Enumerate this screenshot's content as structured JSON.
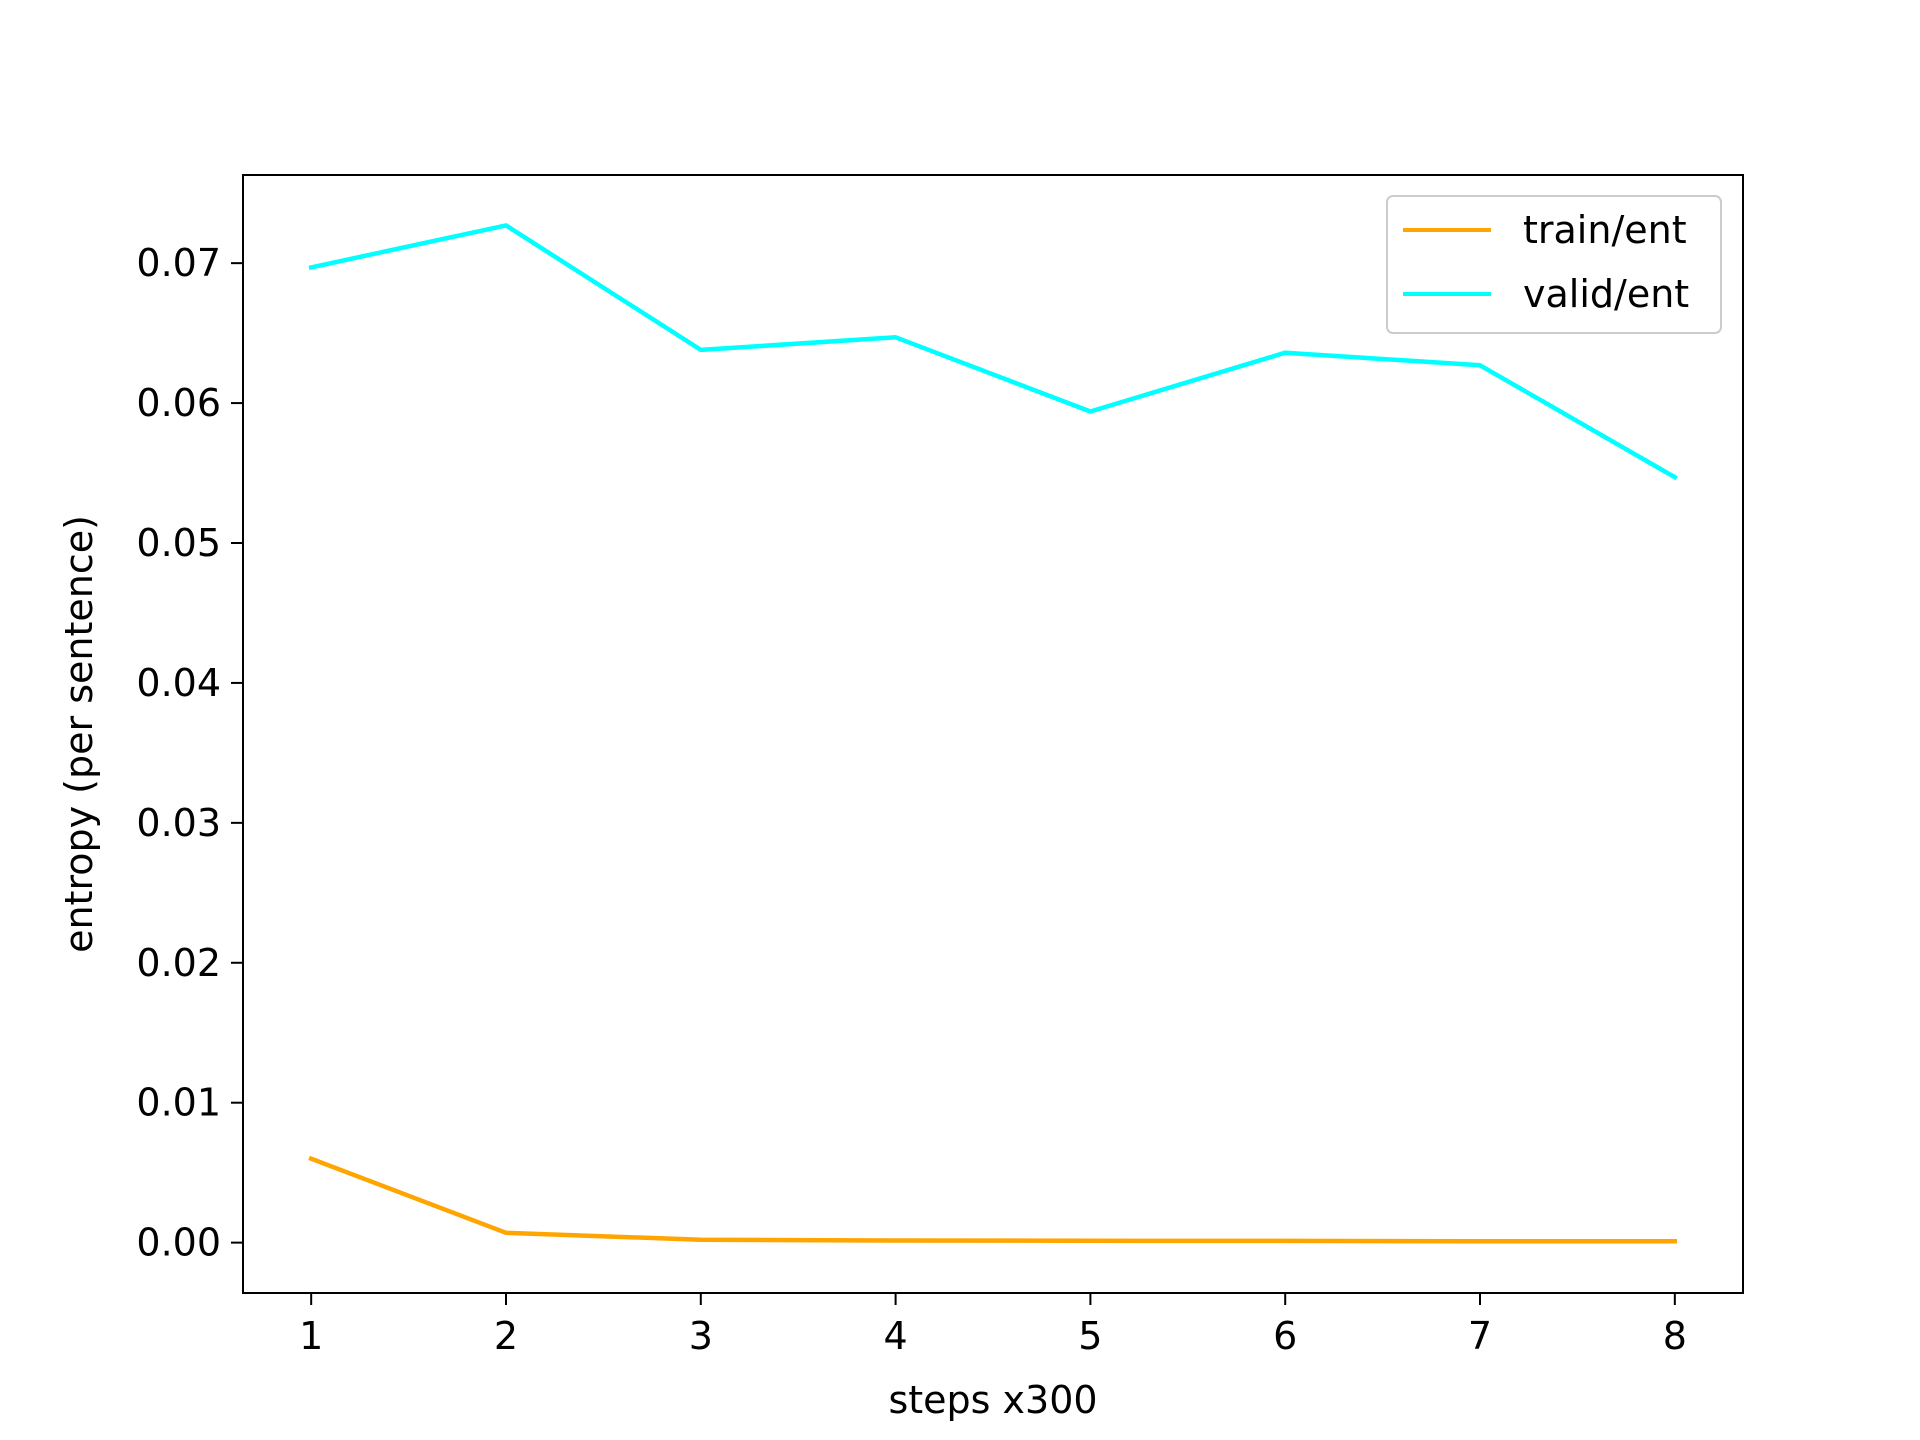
{
  "chart_data": {
    "type": "line",
    "title": "",
    "xlabel": "steps x300",
    "ylabel": "entropy (per sentence)",
    "x": [
      1,
      2,
      3,
      4,
      5,
      6,
      7,
      8
    ],
    "xlim": [
      0.65,
      8.35
    ],
    "ylim": [
      -0.0036,
      0.0763
    ],
    "x_ticks": [
      1,
      2,
      3,
      4,
      5,
      6,
      7,
      8
    ],
    "y_ticks": [
      0.0,
      0.01,
      0.02,
      0.03,
      0.04,
      0.05,
      0.06,
      0.07
    ],
    "y_tick_labels": [
      "0.00",
      "0.01",
      "0.02",
      "0.03",
      "0.04",
      "0.05",
      "0.06",
      "0.07"
    ],
    "grid": false,
    "legend_position": "upper right",
    "series": [
      {
        "name": "train/ent",
        "color": "#ffa500",
        "values": [
          0.006,
          0.0007,
          0.0002,
          0.00015,
          0.00013,
          0.00012,
          0.0001,
          0.0001
        ]
      },
      {
        "name": "valid/ent",
        "color": "#00ffff",
        "values": [
          0.0697,
          0.0727,
          0.0638,
          0.0647,
          0.0594,
          0.0636,
          0.0627,
          0.0547
        ]
      }
    ]
  }
}
